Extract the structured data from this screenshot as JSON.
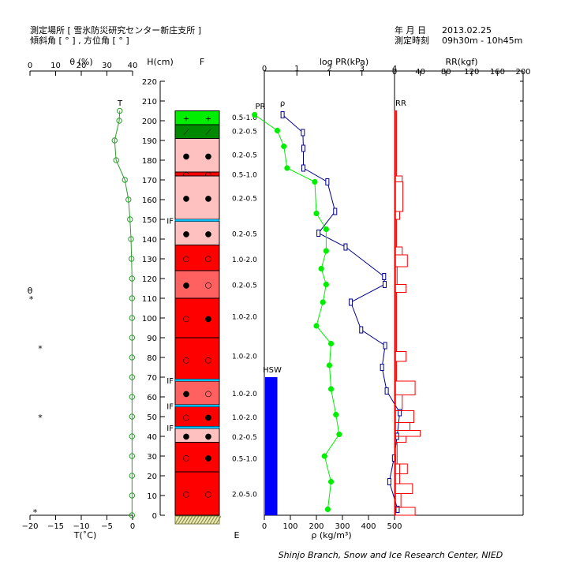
{
  "header": {
    "site_label": "測定場所 [ 雪氷防災研究センター新庄支所 ]",
    "angle_label": "傾斜角 [ ° ] , 方位角 [ ° ]",
    "date_label": "年 月 日",
    "date_value": "2013.02.25",
    "time_label": "測定時刻",
    "time_value": "09h30m - 10h45m"
  },
  "footer": {
    "credit": "Shinjo Branch, Snow and Ice Research Center, NIED"
  },
  "colors": {
    "green_marker": "#00ee00",
    "density_line": "#00008b",
    "temperature": "#2e9e2e",
    "rr": "#ff0000",
    "hsw": "#0000ff",
    "ice": "#00bfff"
  },
  "chart_data": {
    "type": "snow-profile",
    "height_axis": {
      "title": "H(cm)",
      "min": 0,
      "max": 220,
      "step": 10
    },
    "grain_column_title": "F",
    "water_content": {
      "title": "θ (%)",
      "ticks": [
        0,
        10,
        20,
        30,
        40
      ],
      "range": [
        0,
        40
      ],
      "side_label": "θ",
      "marker": "*",
      "points": [
        {
          "h": 110,
          "v": 0.5
        },
        {
          "h": 85,
          "v": 4
        },
        {
          "h": 50,
          "v": 4
        },
        {
          "h": 2,
          "v": 2
        }
      ]
    },
    "temperature": {
      "xlabel": "T(˚C)",
      "ticks": [
        -20,
        -15,
        -10,
        -5,
        0
      ],
      "range": [
        -20,
        0
      ],
      "series_label": "T",
      "points": [
        {
          "h": 205,
          "t": -2.5
        },
        {
          "h": 200,
          "t": -2.6
        },
        {
          "h": 190,
          "t": -3.5
        },
        {
          "h": 180,
          "t": -3.2
        },
        {
          "h": 170,
          "t": -1.5
        },
        {
          "h": 160,
          "t": -0.8
        },
        {
          "h": 150,
          "t": -0.5
        },
        {
          "h": 140,
          "t": -0.3
        },
        {
          "h": 130,
          "t": -0.2
        },
        {
          "h": 120,
          "t": -0.1
        },
        {
          "h": 110,
          "t": -0.1
        },
        {
          "h": 100,
          "t": -0.1
        },
        {
          "h": 90,
          "t": -0.1
        },
        {
          "h": 80,
          "t": -0.1
        },
        {
          "h": 70,
          "t": -0.1
        },
        {
          "h": 60,
          "t": -0.1
        },
        {
          "h": 50,
          "t": -0.1
        },
        {
          "h": 40,
          "t": -0.1
        },
        {
          "h": 30,
          "t": -0.1
        },
        {
          "h": 20,
          "t": -0.1
        },
        {
          "h": 10,
          "t": -0.1
        },
        {
          "h": 0,
          "t": -0.1
        }
      ]
    },
    "layers": [
      {
        "bottom": 198,
        "top": 205,
        "color": "#00ee00",
        "symbols": [
          "+",
          "+"
        ]
      },
      {
        "bottom": 191,
        "top": 198,
        "color": "#008800",
        "symbols": [
          "⟋",
          "⟋"
        ]
      },
      {
        "bottom": 174,
        "top": 191,
        "color": "#ffc0c0",
        "symbols": [
          "●",
          "●"
        ]
      },
      {
        "bottom": 172,
        "top": 174,
        "color": "#ff0000",
        "symbols": [
          "○",
          "○"
        ]
      },
      {
        "bottom": 150,
        "top": 172,
        "color": "#ffc0c0",
        "symbols": [
          "●",
          "●"
        ]
      },
      {
        "bottom": 137,
        "top": 149,
        "color": "#ffc0c0",
        "symbols": [
          "●",
          "●"
        ]
      },
      {
        "bottom": 124,
        "top": 137,
        "color": "#ff0000",
        "symbols": [
          "○",
          "○"
        ]
      },
      {
        "bottom": 110,
        "top": 124,
        "color": "#ff6060",
        "symbols": [
          "●",
          "○"
        ]
      },
      {
        "bottom": 90,
        "top": 110,
        "color": "#ff0000",
        "symbols": [
          "○",
          "●"
        ]
      },
      {
        "bottom": 68,
        "top": 90,
        "color": "#ff0000",
        "symbols": [
          "○",
          "○"
        ]
      },
      {
        "bottom": 56,
        "top": 68,
        "color": "#ff6060",
        "symbols": [
          "●",
          "○"
        ]
      },
      {
        "bottom": 45,
        "top": 55,
        "color": "#ff0000",
        "symbols": [
          "○",
          "●"
        ]
      },
      {
        "bottom": 37,
        "top": 44,
        "color": "#ffc0c0",
        "symbols": [
          "●",
          "●"
        ]
      },
      {
        "bottom": 22,
        "top": 37,
        "color": "#ff0000",
        "symbols": [
          "○",
          "●"
        ]
      },
      {
        "bottom": 0,
        "top": 22,
        "color": "#ff0000",
        "symbols": [
          "○",
          "○"
        ]
      }
    ],
    "ice_layers": [
      {
        "h": 149.5,
        "label": "IF"
      },
      {
        "h": 68.5,
        "label": "IF"
      },
      {
        "h": 55.5,
        "label": "IF"
      },
      {
        "h": 44.5,
        "label": "IF"
      }
    ],
    "grain_sizes": [
      {
        "h": 202,
        "text": "0.5-1.0"
      },
      {
        "h": 195,
        "text": "0.2-0.5"
      },
      {
        "h": 183,
        "text": "0.2-0.5"
      },
      {
        "h": 173,
        "text": "0.5-1.0"
      },
      {
        "h": 161,
        "text": "0.2-0.5"
      },
      {
        "h": 143,
        "text": "0.2-0.5"
      },
      {
        "h": 130,
        "text": "1.0-2.0"
      },
      {
        "h": 117,
        "text": "0.2-0.5"
      },
      {
        "h": 101,
        "text": "1.0-2.0"
      },
      {
        "h": 81,
        "text": "1.0-2.0"
      },
      {
        "h": 62,
        "text": "1.0-2.0"
      },
      {
        "h": 50,
        "text": "1.0-2.0"
      },
      {
        "h": 40,
        "text": "0.2-0.5"
      },
      {
        "h": 29,
        "text": "0.5-1.0"
      },
      {
        "h": 11,
        "text": "2.0-5.0"
      }
    ],
    "hardness_label": "E",
    "pr": {
      "title": "log PR(kPa)",
      "ticks": [
        0,
        1,
        2,
        3,
        4
      ],
      "range": [
        0,
        4
      ],
      "series_label": "PR",
      "points": [
        {
          "h": 203,
          "v": -0.3
        },
        {
          "h": 195,
          "v": 0.4
        },
        {
          "h": 187,
          "v": 0.6
        },
        {
          "h": 176,
          "v": 0.7
        },
        {
          "h": 169,
          "v": 1.55
        },
        {
          "h": 153,
          "v": 1.6
        },
        {
          "h": 145,
          "v": 1.9
        },
        {
          "h": 134,
          "v": 1.9
        },
        {
          "h": 125,
          "v": 1.75
        },
        {
          "h": 117,
          "v": 1.9
        },
        {
          "h": 108,
          "v": 1.8
        },
        {
          "h": 96,
          "v": 1.6
        },
        {
          "h": 87,
          "v": 2.05
        },
        {
          "h": 76,
          "v": 2.0
        },
        {
          "h": 64,
          "v": 2.05
        },
        {
          "h": 51,
          "v": 2.2
        },
        {
          "h": 41,
          "v": 2.3
        },
        {
          "h": 30,
          "v": 1.85
        },
        {
          "h": 17,
          "v": 2.05
        },
        {
          "h": 3,
          "v": 1.95
        }
      ]
    },
    "density": {
      "xlabel": "ρ (kg/m³)",
      "ticks": [
        0,
        100,
        200,
        300,
        400,
        500
      ],
      "range": [
        0,
        500
      ],
      "series_label": "ρ",
      "hsw": {
        "label": "HSW",
        "height": 70,
        "width_value": 50
      },
      "points": [
        {
          "h": 203,
          "v": 70
        },
        {
          "h": 194,
          "v": 148
        },
        {
          "h": 186,
          "v": 150
        },
        {
          "h": 176,
          "v": 150
        },
        {
          "h": 169,
          "v": 242
        },
        {
          "h": 154,
          "v": 272
        },
        {
          "h": 143,
          "v": 208
        },
        {
          "h": 136,
          "v": 312
        },
        {
          "h": 121,
          "v": 460
        },
        {
          "h": 117,
          "v": 462
        },
        {
          "h": 108,
          "v": 332
        },
        {
          "h": 94,
          "v": 372
        },
        {
          "h": 86,
          "v": 464
        },
        {
          "h": 75,
          "v": 452
        },
        {
          "h": 63,
          "v": 470
        },
        {
          "h": 52,
          "v": 520
        },
        {
          "h": 40,
          "v": 510
        },
        {
          "h": 29,
          "v": 498
        },
        {
          "h": 17,
          "v": 480
        },
        {
          "h": 3,
          "v": 512
        }
      ]
    },
    "rr": {
      "title": "RR(kgf)",
      "ticks": [
        0,
        40,
        80,
        120,
        160,
        200
      ],
      "range": [
        0,
        200
      ],
      "series_label": "RR",
      "steps": [
        {
          "from": 172,
          "to": 205,
          "v": 3
        },
        {
          "from": 169,
          "to": 172,
          "v": 12
        },
        {
          "from": 154,
          "to": 169,
          "v": 13
        },
        {
          "from": 150,
          "to": 154,
          "v": 8
        },
        {
          "from": 136,
          "to": 150,
          "v": 3
        },
        {
          "from": 132,
          "to": 136,
          "v": 12
        },
        {
          "from": 126,
          "to": 132,
          "v": 20
        },
        {
          "from": 117,
          "to": 126,
          "v": 4
        },
        {
          "from": 113,
          "to": 117,
          "v": 18
        },
        {
          "from": 83,
          "to": 113,
          "v": 3
        },
        {
          "from": 78,
          "to": 83,
          "v": 18
        },
        {
          "from": 68,
          "to": 78,
          "v": 3
        },
        {
          "from": 61,
          "to": 68,
          "v": 32
        },
        {
          "from": 53,
          "to": 61,
          "v": 12
        },
        {
          "from": 47,
          "to": 53,
          "v": 30
        },
        {
          "from": 43,
          "to": 47,
          "v": 24
        },
        {
          "from": 40,
          "to": 43,
          "v": 40
        },
        {
          "from": 37,
          "to": 40,
          "v": 18
        },
        {
          "from": 26,
          "to": 37,
          "v": 4
        },
        {
          "from": 21,
          "to": 26,
          "v": 20
        },
        {
          "from": 16,
          "to": 26,
          "v": 8
        },
        {
          "from": 11,
          "to": 16,
          "v": 28
        },
        {
          "from": 4,
          "to": 11,
          "v": 10
        },
        {
          "from": 0,
          "to": 4,
          "v": 32
        }
      ]
    }
  }
}
